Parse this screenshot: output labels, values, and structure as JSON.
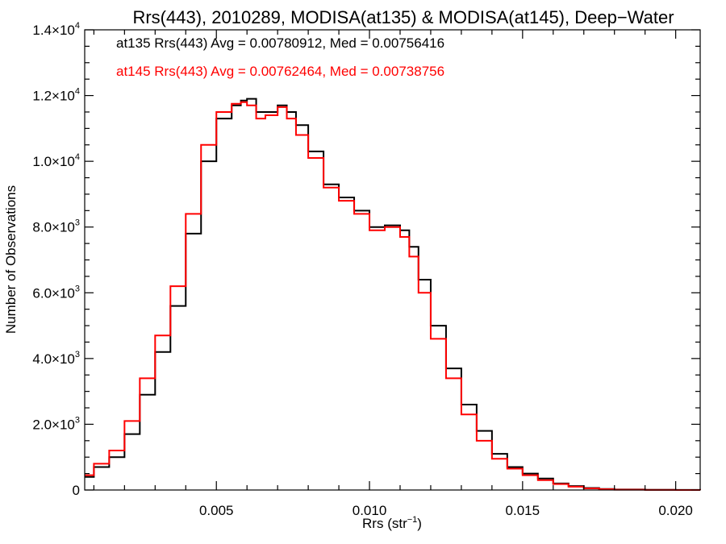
{
  "chart_data": {
    "type": "line",
    "title": "Rrs(443), 2010289, MODISA(at135) & MODISA(at145), Deep−Water",
    "xlabel": "Rrs (str",
    "xlabel_sup": "−1",
    "xlabel_suffix": ")",
    "ylabel": "Number of Observations",
    "xlim": [
      0.0007,
      0.0208
    ],
    "ylim": [
      0,
      14000
    ],
    "x_ticks": [
      {
        "value": 0.005,
        "label": "0.005"
      },
      {
        "value": 0.01,
        "label": "0.010"
      },
      {
        "value": 0.015,
        "label": "0.015"
      },
      {
        "value": 0.02,
        "label": "0.020"
      }
    ],
    "y_ticks": [
      {
        "value": 0,
        "label": "0",
        "exp": ""
      },
      {
        "value": 2000,
        "label": "2.0×10",
        "exp": "3"
      },
      {
        "value": 4000,
        "label": "4.0×10",
        "exp": "3"
      },
      {
        "value": 6000,
        "label": "6.0×10",
        "exp": "3"
      },
      {
        "value": 8000,
        "label": "8.0×10",
        "exp": "3"
      },
      {
        "value": 10000,
        "label": "1.0×10",
        "exp": "4"
      },
      {
        "value": 12000,
        "label": "1.2×10",
        "exp": "4"
      },
      {
        "value": 14000,
        "label": "1.4×10",
        "exp": "4"
      }
    ],
    "grid": false,
    "legend_position": "top-left",
    "series": [
      {
        "name": "at135",
        "legend_text": "at135 Rrs(443) Avg = 0.00780912, Med = 0.00756416",
        "color": "#000000",
        "x": [
          0.0007,
          0.001,
          0.0015,
          0.002,
          0.0025,
          0.003,
          0.0035,
          0.004,
          0.0045,
          0.005,
          0.0055,
          0.0058,
          0.006,
          0.0063,
          0.0066,
          0.007,
          0.0073,
          0.0076,
          0.008,
          0.0085,
          0.009,
          0.0095,
          0.01,
          0.0105,
          0.011,
          0.0113,
          0.0116,
          0.012,
          0.0125,
          0.013,
          0.0135,
          0.014,
          0.0145,
          0.015,
          0.0155,
          0.016,
          0.0165,
          0.017,
          0.0175,
          0.018,
          0.019,
          0.02,
          0.0208
        ],
        "y": [
          400,
          700,
          1000,
          1700,
          2900,
          4200,
          5600,
          7800,
          10000,
          11300,
          11700,
          11850,
          11900,
          11500,
          11500,
          11700,
          11500,
          11100,
          10300,
          9300,
          8900,
          8500,
          8000,
          8050,
          7900,
          7400,
          6400,
          5000,
          3700,
          2600,
          1800,
          1100,
          700,
          500,
          350,
          200,
          120,
          60,
          30,
          15,
          5,
          2,
          0
        ]
      },
      {
        "name": "at145",
        "legend_text": "at145 Rrs(443) Avg = 0.00762464, Med = 0.00738756",
        "color": "#ff0000",
        "x": [
          0.0007,
          0.001,
          0.0015,
          0.002,
          0.0025,
          0.003,
          0.0035,
          0.004,
          0.0045,
          0.005,
          0.0055,
          0.0058,
          0.006,
          0.0063,
          0.0066,
          0.007,
          0.0073,
          0.0076,
          0.008,
          0.0085,
          0.009,
          0.0095,
          0.01,
          0.0105,
          0.011,
          0.0113,
          0.0116,
          0.012,
          0.0125,
          0.013,
          0.0135,
          0.014,
          0.0145,
          0.015,
          0.0155,
          0.016,
          0.0165,
          0.017,
          0.0175,
          0.018,
          0.019,
          0.02,
          0.0208
        ],
        "y": [
          450,
          800,
          1200,
          2100,
          3400,
          4700,
          6200,
          8400,
          10500,
          11500,
          11750,
          11800,
          11700,
          11300,
          11400,
          11650,
          11300,
          10800,
          10100,
          9200,
          8800,
          8400,
          7900,
          8000,
          7700,
          7100,
          6000,
          4600,
          3400,
          2300,
          1500,
          950,
          650,
          450,
          300,
          180,
          100,
          50,
          25,
          10,
          4,
          1,
          0
        ]
      }
    ]
  }
}
